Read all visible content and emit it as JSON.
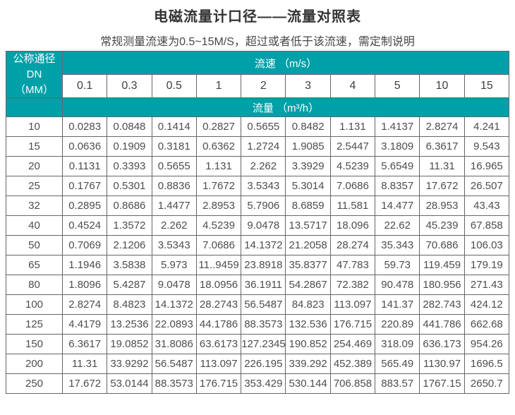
{
  "page": {
    "title": "电磁流量计口径——流量对照表",
    "subtitle": "常规测量流速为0.5~15M/S，超过或者低于该流速，需定制说明"
  },
  "colors": {
    "header_teal": "#00a0a8",
    "grid_border": "#666666",
    "title_text": "#333333",
    "cell_text": "#4d4d4d"
  },
  "table": {
    "corner_header_line1": "公称通径DN",
    "corner_header_line2": "（MM）",
    "velocity_header": "流速 （m/s）",
    "flow_header": "流量 （m³/h）",
    "velocity_columns": [
      "0.1",
      "0.3",
      "0.5",
      "1",
      "2",
      "3",
      "4",
      "5",
      "10",
      "15"
    ],
    "rows": [
      {
        "dn": "10",
        "values": [
          "0.0283",
          "0.0848",
          "0.1414",
          "0.2827",
          "0.5655",
          "0.8482",
          "1.131",
          "1.4137",
          "2.8274",
          "4.241"
        ]
      },
      {
        "dn": "15",
        "values": [
          "0.0636",
          "0.1909",
          "0.3181",
          "0.6362",
          "1.2724",
          "1.9085",
          "2.5447",
          "3.1809",
          "6.3617",
          "9.543"
        ]
      },
      {
        "dn": "20",
        "values": [
          "0.1131",
          "0.3393",
          "0.5655",
          "1.131",
          "2.262",
          "3.3929",
          "4.5239",
          "5.6549",
          "11.31",
          "16.965"
        ]
      },
      {
        "dn": "25",
        "values": [
          "0.1767",
          "0.5301",
          "0.8836",
          "1.7672",
          "3.5343",
          "5.3014",
          "7.0686",
          "8.8357",
          "17.672",
          "26.507"
        ]
      },
      {
        "dn": "32",
        "values": [
          "0.2895",
          "0.8686",
          "1.4477",
          "2.8953",
          "5.7906",
          "8.6859",
          "11.581",
          "14.477",
          "28.953",
          "43.43"
        ]
      },
      {
        "dn": "40",
        "values": [
          "0.4524",
          "1.3572",
          "2.262",
          "4.5239",
          "9.0478",
          "13.5717",
          "18.096",
          "22.62",
          "45.239",
          "67.858"
        ]
      },
      {
        "dn": "50",
        "values": [
          "0.7069",
          "2.1206",
          "3.5343",
          "7.0686",
          "14.1372",
          "21.2058",
          "28.274",
          "35.343",
          "70.686",
          "106.03"
        ]
      },
      {
        "dn": "65",
        "values": [
          "1.1946",
          "3.5838",
          "5.973",
          "11..9459",
          "23.8918",
          "35.8377",
          "47.783",
          "59.73",
          "119.459",
          "179.19"
        ]
      },
      {
        "dn": "80",
        "values": [
          "1.8096",
          "5.4287",
          "9.0478",
          "18.0956",
          "36.1911",
          "54.2867",
          "72.382",
          "90.478",
          "180.956",
          "271.43"
        ]
      },
      {
        "dn": "100",
        "values": [
          "2.8274",
          "8.4823",
          "14.1372",
          "28.2743",
          "56.5487",
          "84.823",
          "113.097",
          "141.37",
          "282.743",
          "424.12"
        ]
      },
      {
        "dn": "125",
        "values": [
          "4.4179",
          "13.2536",
          "22.0893",
          "44.1786",
          "88.3573",
          "132.536",
          "176.715",
          "220.89",
          "441.786",
          "662.68"
        ]
      },
      {
        "dn": "150",
        "values": [
          "6.3617",
          "19.0852",
          "31.8086",
          "63.6173",
          "127.2345",
          "190.852",
          "254.469",
          "318.09",
          "636.173",
          "954.26"
        ]
      },
      {
        "dn": "200",
        "values": [
          "11.31",
          "33.9292",
          "56.5487",
          "113.097",
          "226.195",
          "339.292",
          "452.389",
          "565.49",
          "1130.97",
          "1696.5"
        ]
      },
      {
        "dn": "250",
        "values": [
          "17.672",
          "53.0144",
          "88.3573",
          "176.715",
          "353.429",
          "530.144",
          "706.858",
          "883.57",
          "1767.15",
          "2650.7"
        ]
      }
    ]
  }
}
